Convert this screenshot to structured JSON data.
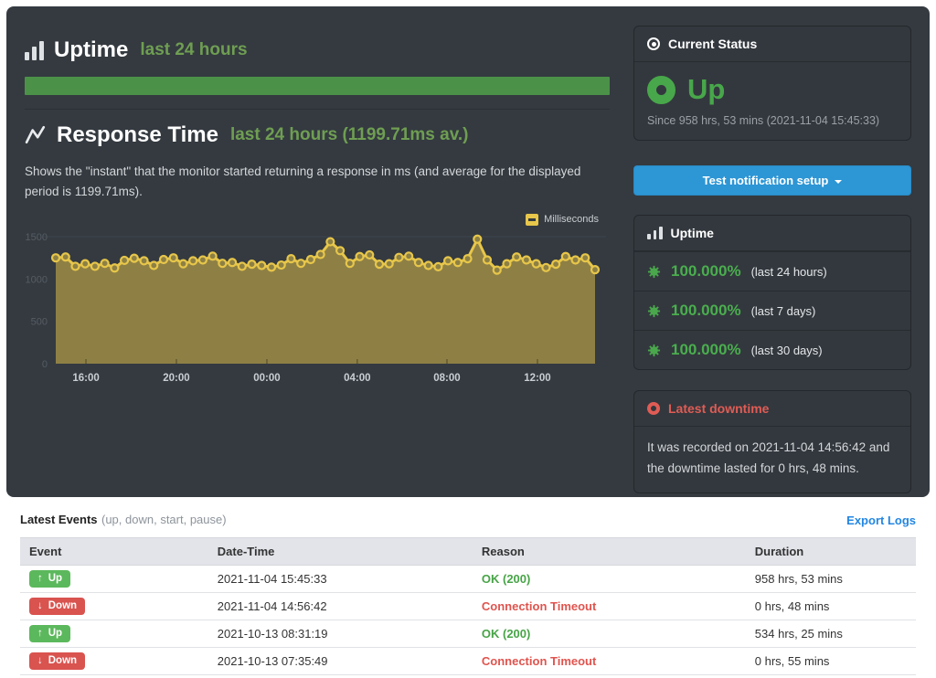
{
  "hero": {
    "uptime_section": {
      "title": "Uptime",
      "subtitle": "last 24 hours"
    },
    "response_section": {
      "title": "Response Time",
      "subtitle": "last 24 hours (1199.71ms av.)",
      "description": "Shows the \"instant\" that the monitor started returning a response in ms (and average for the displayed period is 1199.71ms)."
    }
  },
  "chart_data": {
    "type": "line",
    "title": "Response Time last 24 hours",
    "series_label": "Milliseconds",
    "ylabel": "",
    "xlabel": "",
    "ylim": [
      0,
      1500
    ],
    "yticks": [
      0,
      500,
      1000,
      1500
    ],
    "grid": "top-line-only",
    "legend_position": "top-right",
    "average_ms": 1199.71,
    "line_color": "#e7c64a",
    "fill_color": "rgba(231,198,74,0.5)",
    "marker_fill": "#8d8045",
    "xticks": [
      {
        "label": "16:00",
        "f": 0.056
      },
      {
        "label": "20:00",
        "f": 0.2237
      },
      {
        "label": "00:00",
        "f": 0.3915
      },
      {
        "label": "04:00",
        "f": 0.559
      },
      {
        "label": "08:00",
        "f": 0.7254
      },
      {
        "label": "12:00",
        "f": 0.8932
      }
    ],
    "values": [
      1250,
      1260,
      1150,
      1180,
      1150,
      1185,
      1130,
      1220,
      1245,
      1215,
      1160,
      1230,
      1250,
      1180,
      1215,
      1225,
      1270,
      1185,
      1195,
      1150,
      1175,
      1160,
      1140,
      1165,
      1240,
      1185,
      1230,
      1290,
      1440,
      1335,
      1185,
      1265,
      1285,
      1175,
      1180,
      1255,
      1270,
      1195,
      1160,
      1145,
      1215,
      1195,
      1240,
      1470,
      1225,
      1105,
      1180,
      1260,
      1225,
      1180,
      1135,
      1175,
      1265,
      1225,
      1250,
      1110
    ]
  },
  "sidebar": {
    "current_status": {
      "header": "Current Status",
      "status": "Up",
      "status_color": "#48a74a",
      "since": "Since 958 hrs, 53 mins (2021-11-04 15:45:33)"
    },
    "test_button": {
      "label": "Test notification setup",
      "color": "#2d96d5"
    },
    "uptime_stats": {
      "header": "Uptime",
      "rows": [
        {
          "value": "100.000%",
          "label": "(last 24 hours)"
        },
        {
          "value": "100.000%",
          "label": "(last 7 days)"
        },
        {
          "value": "100.000%",
          "label": "(last 30 days)"
        }
      ]
    },
    "latest_downtime": {
      "header": "Latest downtime",
      "header_color": "#e05c55",
      "text": "It was recorded on 2021-11-04 14:56:42 and the downtime lasted for 0 hrs, 48 mins."
    }
  },
  "events": {
    "title": "Latest Events",
    "subtitle": "(up, down, start, pause)",
    "export_link": "Export Logs",
    "columns": [
      "Event",
      "Date-Time",
      "Reason",
      "Duration"
    ],
    "rows": [
      {
        "type": "up",
        "badge": "Up",
        "arrow": "↑",
        "datetime": "2021-11-04 15:45:33",
        "reason": "OK (200)",
        "reason_type": "ok",
        "duration": "958 hrs, 53 mins"
      },
      {
        "type": "down",
        "badge": "Down",
        "arrow": "↓",
        "datetime": "2021-11-04 14:56:42",
        "reason": "Connection Timeout",
        "reason_type": "error",
        "duration": "0 hrs, 48 mins"
      },
      {
        "type": "up",
        "badge": "Up",
        "arrow": "↑",
        "datetime": "2021-10-13 08:31:19",
        "reason": "OK (200)",
        "reason_type": "ok",
        "duration": "534 hrs, 25 mins"
      },
      {
        "type": "down",
        "badge": "Down",
        "arrow": "↓",
        "datetime": "2021-10-13 07:35:49",
        "reason": "Connection Timeout",
        "reason_type": "error",
        "duration": "0 hrs, 55 mins"
      }
    ]
  },
  "colors": {
    "hero_bg": "#343a40",
    "panel_bg": "#33383e",
    "accent_green": "#4b9248",
    "bright_green": "#48a74a",
    "chart_yellow": "#e7c64a",
    "button_blue": "#2d96d5",
    "alert_red": "#e05c55",
    "link_blue": "#2386e2"
  }
}
